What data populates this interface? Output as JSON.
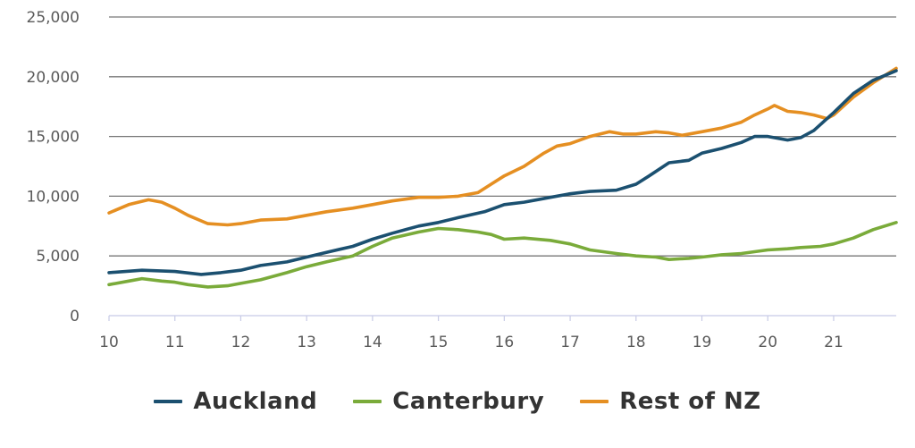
{
  "chart_data": {
    "type": "line",
    "x_tick_labels": [
      "10",
      "11",
      "12",
      "13",
      "14",
      "15",
      "16",
      "17",
      "18",
      "19",
      "20",
      "21"
    ],
    "x_ticks": [
      10,
      11,
      12,
      13,
      14,
      15,
      16,
      17,
      18,
      19,
      20,
      21
    ],
    "xlim": [
      10,
      21.95
    ],
    "ylim": [
      0,
      25000
    ],
    "y_ticks": [
      0,
      5000,
      10000,
      15000,
      20000,
      25000
    ],
    "y_tick_labels": [
      "0",
      "5,000",
      "10,000",
      "15,000",
      "20,000",
      "25,000"
    ],
    "grid": "horizontal",
    "legend_position": "bottom",
    "series": [
      {
        "name": "Auckland",
        "color": "#1b5070",
        "points": [
          [
            10.0,
            3600
          ],
          [
            10.5,
            3800
          ],
          [
            11.0,
            3700
          ],
          [
            11.4,
            3450
          ],
          [
            11.7,
            3600
          ],
          [
            12.0,
            3800
          ],
          [
            12.3,
            4200
          ],
          [
            12.7,
            4500
          ],
          [
            13.0,
            4900
          ],
          [
            13.3,
            5300
          ],
          [
            13.7,
            5800
          ],
          [
            14.0,
            6400
          ],
          [
            14.3,
            6900
          ],
          [
            14.7,
            7500
          ],
          [
            15.0,
            7800
          ],
          [
            15.3,
            8200
          ],
          [
            15.7,
            8700
          ],
          [
            16.0,
            9300
          ],
          [
            16.3,
            9500
          ],
          [
            16.7,
            9900
          ],
          [
            17.0,
            10200
          ],
          [
            17.3,
            10400
          ],
          [
            17.7,
            10500
          ],
          [
            18.0,
            11000
          ],
          [
            18.2,
            11700
          ],
          [
            18.5,
            12800
          ],
          [
            18.8,
            13000
          ],
          [
            19.0,
            13600
          ],
          [
            19.3,
            14000
          ],
          [
            19.6,
            14500
          ],
          [
            19.8,
            15000
          ],
          [
            20.0,
            15000
          ],
          [
            20.3,
            14700
          ],
          [
            20.5,
            14900
          ],
          [
            20.7,
            15500
          ],
          [
            21.0,
            17000
          ],
          [
            21.3,
            18600
          ],
          [
            21.6,
            19700
          ],
          [
            21.95,
            20500
          ]
        ]
      },
      {
        "name": "Canterbury",
        "color": "#7aab3a",
        "points": [
          [
            10.0,
            2600
          ],
          [
            10.3,
            2900
          ],
          [
            10.5,
            3100
          ],
          [
            10.8,
            2900
          ],
          [
            11.0,
            2800
          ],
          [
            11.2,
            2600
          ],
          [
            11.5,
            2400
          ],
          [
            11.8,
            2500
          ],
          [
            12.0,
            2700
          ],
          [
            12.3,
            3000
          ],
          [
            12.7,
            3600
          ],
          [
            13.0,
            4100
          ],
          [
            13.3,
            4500
          ],
          [
            13.7,
            5000
          ],
          [
            14.0,
            5800
          ],
          [
            14.3,
            6500
          ],
          [
            14.7,
            7000
          ],
          [
            15.0,
            7300
          ],
          [
            15.3,
            7200
          ],
          [
            15.6,
            7000
          ],
          [
            15.8,
            6800
          ],
          [
            16.0,
            6400
          ],
          [
            16.3,
            6500
          ],
          [
            16.7,
            6300
          ],
          [
            17.0,
            6000
          ],
          [
            17.3,
            5500
          ],
          [
            17.7,
            5200
          ],
          [
            18.0,
            5000
          ],
          [
            18.3,
            4900
          ],
          [
            18.5,
            4700
          ],
          [
            18.8,
            4800
          ],
          [
            19.0,
            4900
          ],
          [
            19.3,
            5100
          ],
          [
            19.6,
            5200
          ],
          [
            20.0,
            5500
          ],
          [
            20.3,
            5600
          ],
          [
            20.5,
            5700
          ],
          [
            20.8,
            5800
          ],
          [
            21.0,
            6000
          ],
          [
            21.3,
            6500
          ],
          [
            21.6,
            7200
          ],
          [
            21.95,
            7800
          ]
        ]
      },
      {
        "name": "Rest of NZ",
        "color": "#e58f22",
        "points": [
          [
            10.0,
            8600
          ],
          [
            10.3,
            9300
          ],
          [
            10.6,
            9700
          ],
          [
            10.8,
            9500
          ],
          [
            11.0,
            9000
          ],
          [
            11.2,
            8400
          ],
          [
            11.5,
            7700
          ],
          [
            11.8,
            7600
          ],
          [
            12.0,
            7700
          ],
          [
            12.3,
            8000
          ],
          [
            12.7,
            8100
          ],
          [
            13.0,
            8400
          ],
          [
            13.3,
            8700
          ],
          [
            13.7,
            9000
          ],
          [
            14.0,
            9300
          ],
          [
            14.3,
            9600
          ],
          [
            14.7,
            9900
          ],
          [
            15.0,
            9900
          ],
          [
            15.3,
            10000
          ],
          [
            15.6,
            10300
          ],
          [
            15.8,
            11000
          ],
          [
            16.0,
            11700
          ],
          [
            16.3,
            12500
          ],
          [
            16.6,
            13600
          ],
          [
            16.8,
            14200
          ],
          [
            17.0,
            14400
          ],
          [
            17.3,
            15000
          ],
          [
            17.6,
            15400
          ],
          [
            17.8,
            15200
          ],
          [
            18.0,
            15200
          ],
          [
            18.3,
            15400
          ],
          [
            18.5,
            15300
          ],
          [
            18.7,
            15100
          ],
          [
            19.0,
            15400
          ],
          [
            19.3,
            15700
          ],
          [
            19.6,
            16200
          ],
          [
            19.8,
            16800
          ],
          [
            20.0,
            17300
          ],
          [
            20.1,
            17600
          ],
          [
            20.3,
            17100
          ],
          [
            20.5,
            17000
          ],
          [
            20.7,
            16800
          ],
          [
            20.9,
            16500
          ],
          [
            21.0,
            16800
          ],
          [
            21.3,
            18300
          ],
          [
            21.6,
            19500
          ],
          [
            21.95,
            20700
          ]
        ]
      }
    ]
  },
  "legend": {
    "items": [
      {
        "label": "Auckland",
        "color": "#1b5070"
      },
      {
        "label": "Canterbury",
        "color": "#7aab3a"
      },
      {
        "label": "Rest of NZ",
        "color": "#e58f22"
      }
    ]
  }
}
